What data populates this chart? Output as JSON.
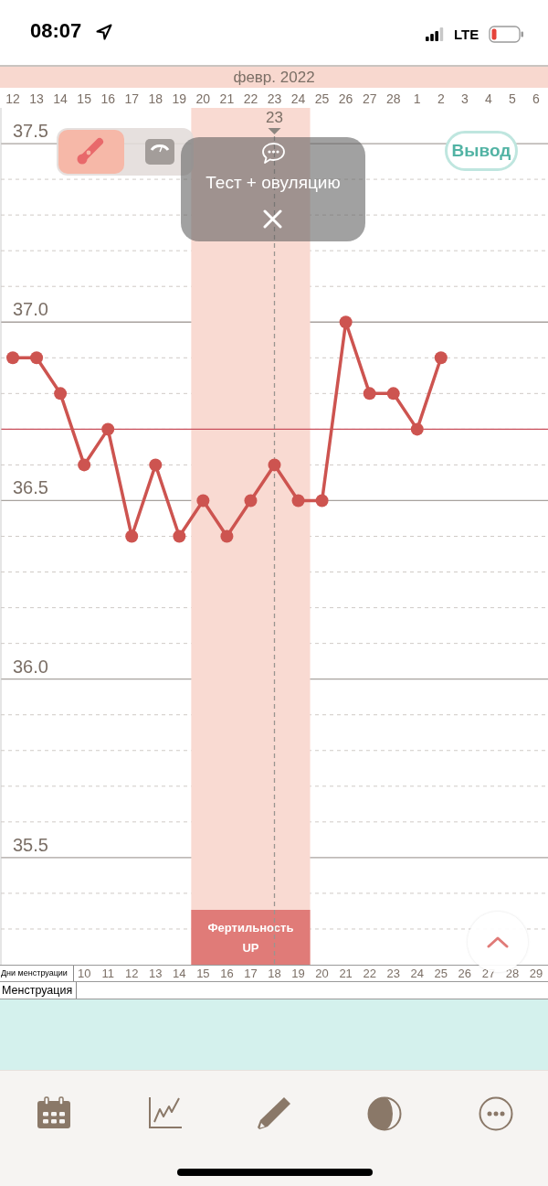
{
  "chart_data": {
    "type": "line",
    "xlabel": "февр. 2022",
    "x2label": "Дни менструации",
    "categories": [
      "12",
      "13",
      "14",
      "15",
      "16",
      "17",
      "18",
      "19",
      "20",
      "21",
      "22",
      "23",
      "24",
      "25",
      "26",
      "27",
      "28",
      "1",
      "2",
      "3",
      "4",
      "5",
      "6"
    ],
    "series": [
      {
        "color": "#cd5450",
        "values": [
          36.9,
          36.9,
          36.8,
          36.6,
          36.7,
          36.4,
          36.6,
          36.4,
          36.5,
          36.4,
          36.5,
          36.6,
          36.5,
          36.5,
          37.0,
          36.8,
          36.8,
          36.7,
          36.9,
          null,
          null,
          null,
          null
        ]
      }
    ],
    "ylim": [
      35.2,
      37.6
    ],
    "yticks": [
      {
        "value": 35.3,
        "label": null
      },
      {
        "value": 35.4,
        "label": null
      },
      35.5,
      {
        "value": 35.6,
        "label": null
      },
      {
        "value": 35.7,
        "label": null
      },
      {
        "value": 35.8,
        "label": null
      },
      {
        "value": 35.9,
        "label": null
      },
      {
        "value": 36.0,
        "label": "36.0"
      },
      {
        "value": 36.1,
        "label": null
      },
      {
        "value": 36.2,
        "label": null
      },
      {
        "value": 36.3,
        "label": null
      },
      {
        "value": 36.4,
        "label": null
      },
      36.5,
      {
        "value": 36.6,
        "label": null
      },
      {
        "value": 36.7,
        "label": null
      },
      {
        "value": 36.8,
        "label": null
      },
      {
        "value": 36.9,
        "label": null
      },
      {
        "value": 37.0,
        "label": "37.0"
      },
      {
        "value": 37.1,
        "label": null
      },
      {
        "value": 37.2,
        "label": null
      },
      {
        "value": 37.3,
        "label": null
      },
      {
        "value": 37.4,
        "label": null
      },
      37.5
    ],
    "x2lim": [
      6.5,
      29.5
    ],
    "x2ticks": [
      10,
      11,
      12,
      13,
      14,
      15,
      16,
      17,
      18,
      19,
      20,
      21,
      22,
      23,
      24,
      25,
      26,
      27,
      28,
      29
    ],
    "grid": "y",
    "marker": "circle",
    "line_style": "solid",
    "ref_lines": [
      {
        "axis": "y",
        "value": 36.7,
        "color": "#c94f5c"
      },
      {
        "axis": "x",
        "value": "23",
        "color": "#9a9590",
        "line_style": "dashed"
      }
    ],
    "bands": [
      {
        "axis": "x",
        "from": "20",
        "to": "24",
        "label": "Фертильность UP",
        "color": "#f9dad2"
      }
    ],
    "annotations": [
      "08:07",
      "LTE",
      "Тест + овуляцию",
      "Вывод",
      "Менструация"
    ]
  }
}
